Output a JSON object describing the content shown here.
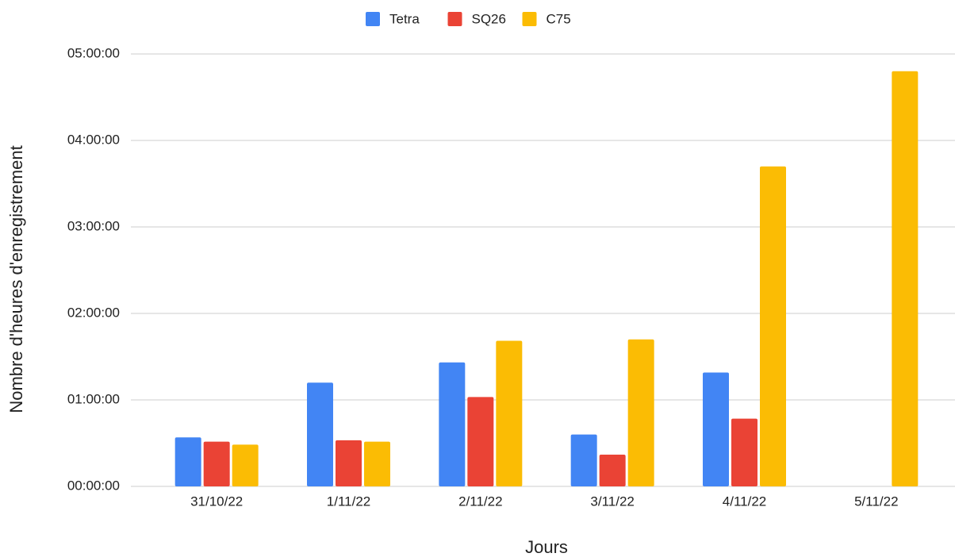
{
  "chart_data": {
    "type": "bar",
    "x_label": "Jours",
    "y_label": "Nombre d'heures d'enregistrement",
    "categories": [
      "31/10/22",
      "1/11/22",
      "2/11/22",
      "3/11/22",
      "4/11/22",
      "5/11/22"
    ],
    "series": [
      {
        "name": "Tetra",
        "color": "#4285f4",
        "values": [
          34,
          72,
          86,
          36,
          79,
          null
        ]
      },
      {
        "name": "SQ26",
        "color": "#ea4335",
        "values": [
          31,
          32,
          62,
          22,
          47,
          null
        ]
      },
      {
        "name": "C75",
        "color": "#fbbc04",
        "values": [
          29,
          31,
          101,
          102,
          222,
          288
        ]
      }
    ],
    "ylim": [
      0,
      300
    ],
    "yticks": [
      {
        "value": 0,
        "label": "00:00:00"
      },
      {
        "value": 60,
        "label": "01:00:00"
      },
      {
        "value": 120,
        "label": "02:00:00"
      },
      {
        "value": 180,
        "label": "03:00:00"
      },
      {
        "value": 240,
        "label": "04:00:00"
      },
      {
        "value": 300,
        "label": "05:00:00"
      }
    ],
    "grid": true,
    "legend": "top"
  }
}
